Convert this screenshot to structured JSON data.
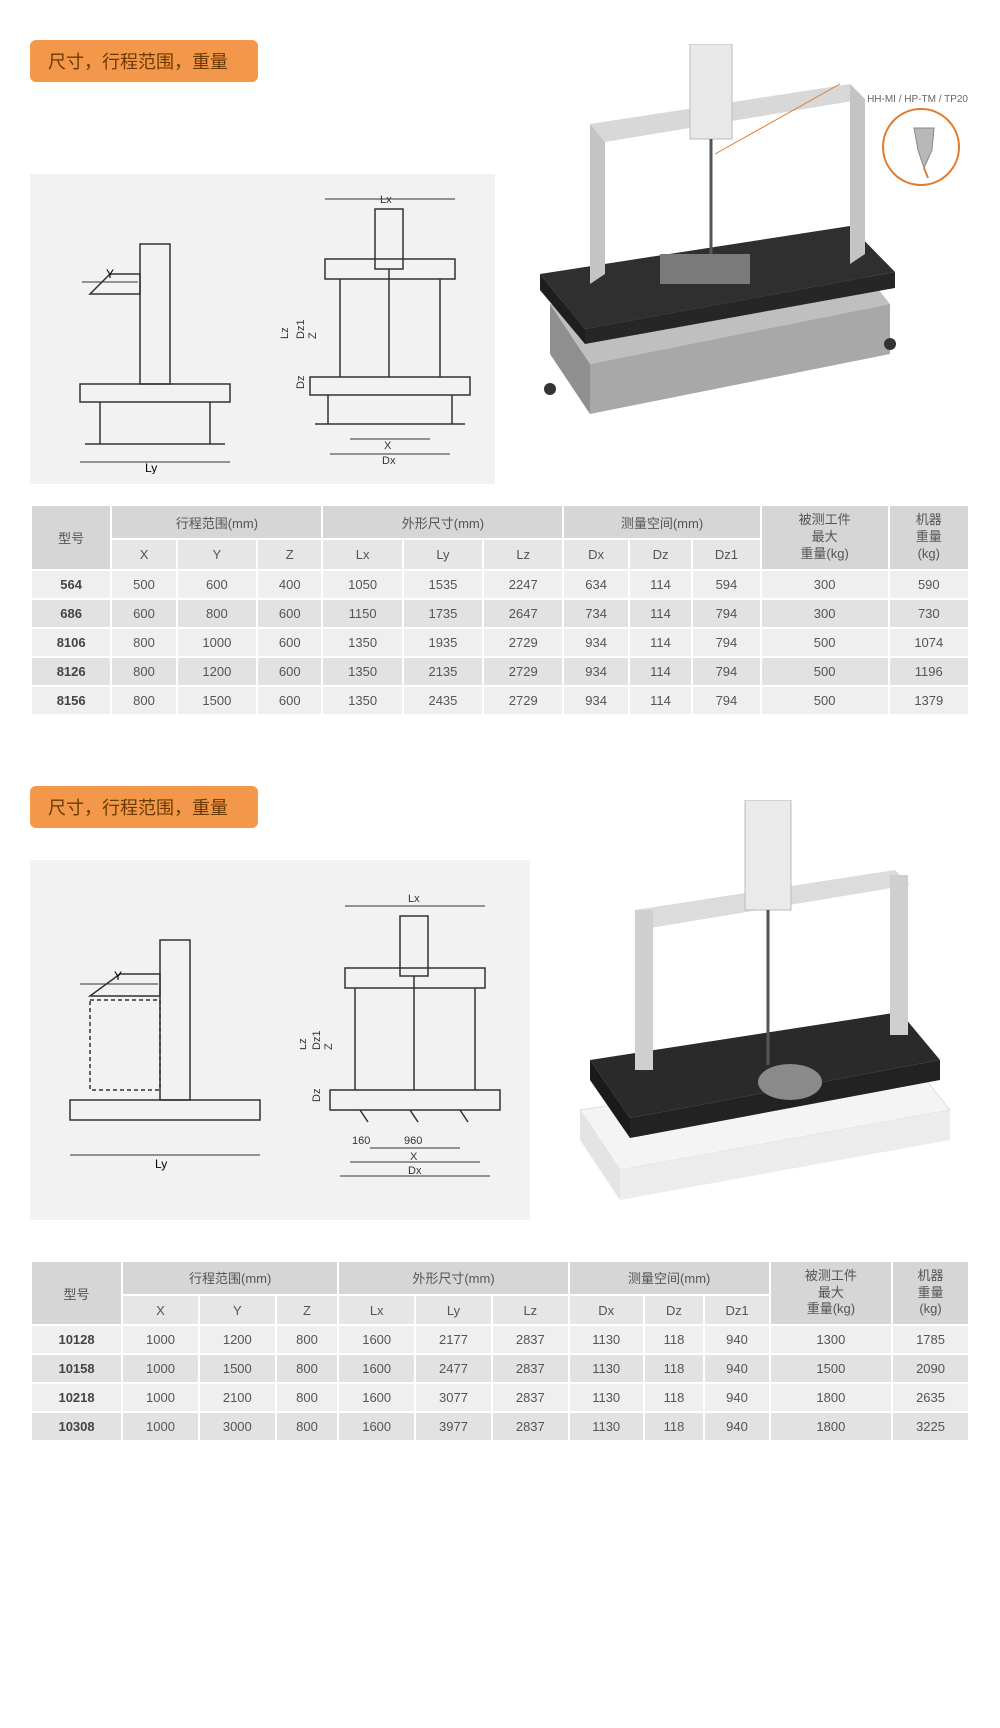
{
  "colors": {
    "header_bg": "#f3974a",
    "header_text": "#6b3a00",
    "grey_box": "#f2f2f2",
    "probe_ring": "#e07b2e",
    "table_hdr": "#d6d6d6",
    "table_sub": "#e6e6e6",
    "table_rowA": "#efefef",
    "table_rowB": "#e2e2e2"
  },
  "section1": {
    "title": "尺寸，行程范围，重量",
    "probe_label": "HH-MI / HP-TM / TP20",
    "schematic_labels": {
      "Y": "Y",
      "Ly": "Ly",
      "Lx": "Lx",
      "Lz": "Lz",
      "Z": "Z",
      "Dz": "Dz",
      "Dz1": "Dz1",
      "X": "X",
      "Dx": "Dx"
    },
    "table": {
      "group_headers": [
        "型号",
        "行程范围(mm)",
        "外形尺寸(mm)",
        "测量空间(mm)",
        "被测工件\n最大\n重量(kg)",
        "机器\n重量\n(kg)"
      ],
      "sub_headers": [
        "X",
        "Y",
        "Z",
        "Lx",
        "Ly",
        "Lz",
        "Dx",
        "Dz",
        "Dz1"
      ],
      "rows": [
        [
          "564",
          "500",
          "600",
          "400",
          "1050",
          "1535",
          "2247",
          "634",
          "114",
          "594",
          "300",
          "590"
        ],
        [
          "686",
          "600",
          "800",
          "600",
          "1150",
          "1735",
          "2647",
          "734",
          "114",
          "794",
          "300",
          "730"
        ],
        [
          "8106",
          "800",
          "1000",
          "600",
          "1350",
          "1935",
          "2729",
          "934",
          "114",
          "794",
          "500",
          "1074"
        ],
        [
          "8126",
          "800",
          "1200",
          "600",
          "1350",
          "2135",
          "2729",
          "934",
          "114",
          "794",
          "500",
          "1196"
        ],
        [
          "8156",
          "800",
          "1500",
          "600",
          "1350",
          "2435",
          "2729",
          "934",
          "114",
          "794",
          "500",
          "1379"
        ]
      ]
    }
  },
  "section2": {
    "title": "尺寸，行程范围，重量",
    "schematic_labels": {
      "Y": "Y",
      "Ly": "Ly",
      "Lx": "Lx",
      "Lz": "Lz",
      "Z": "Z",
      "Dz": "Dz",
      "Dz1": "Dz1",
      "X": "X",
      "Dx": "Dx",
      "n160": "160",
      "n960": "960"
    },
    "table": {
      "group_headers": [
        "型号",
        "行程范围(mm)",
        "外形尺寸(mm)",
        "测量空间(mm)",
        "被测工件\n最大\n重量(kg)",
        "机器\n重量\n(kg)"
      ],
      "sub_headers": [
        "X",
        "Y",
        "Z",
        "Lx",
        "Ly",
        "Lz",
        "Dx",
        "Dz",
        "Dz1"
      ],
      "rows": [
        [
          "10128",
          "1000",
          "1200",
          "800",
          "1600",
          "2177",
          "2837",
          "1130",
          "118",
          "940",
          "1300",
          "1785"
        ],
        [
          "10158",
          "1000",
          "1500",
          "800",
          "1600",
          "2477",
          "2837",
          "1130",
          "118",
          "940",
          "1500",
          "2090"
        ],
        [
          "10218",
          "1000",
          "2100",
          "800",
          "1600",
          "3077",
          "2837",
          "1130",
          "118",
          "940",
          "1800",
          "2635"
        ],
        [
          "10308",
          "1000",
          "3000",
          "800",
          "1600",
          "3977",
          "2837",
          "1130",
          "118",
          "940",
          "1800",
          "3225"
        ]
      ]
    }
  }
}
